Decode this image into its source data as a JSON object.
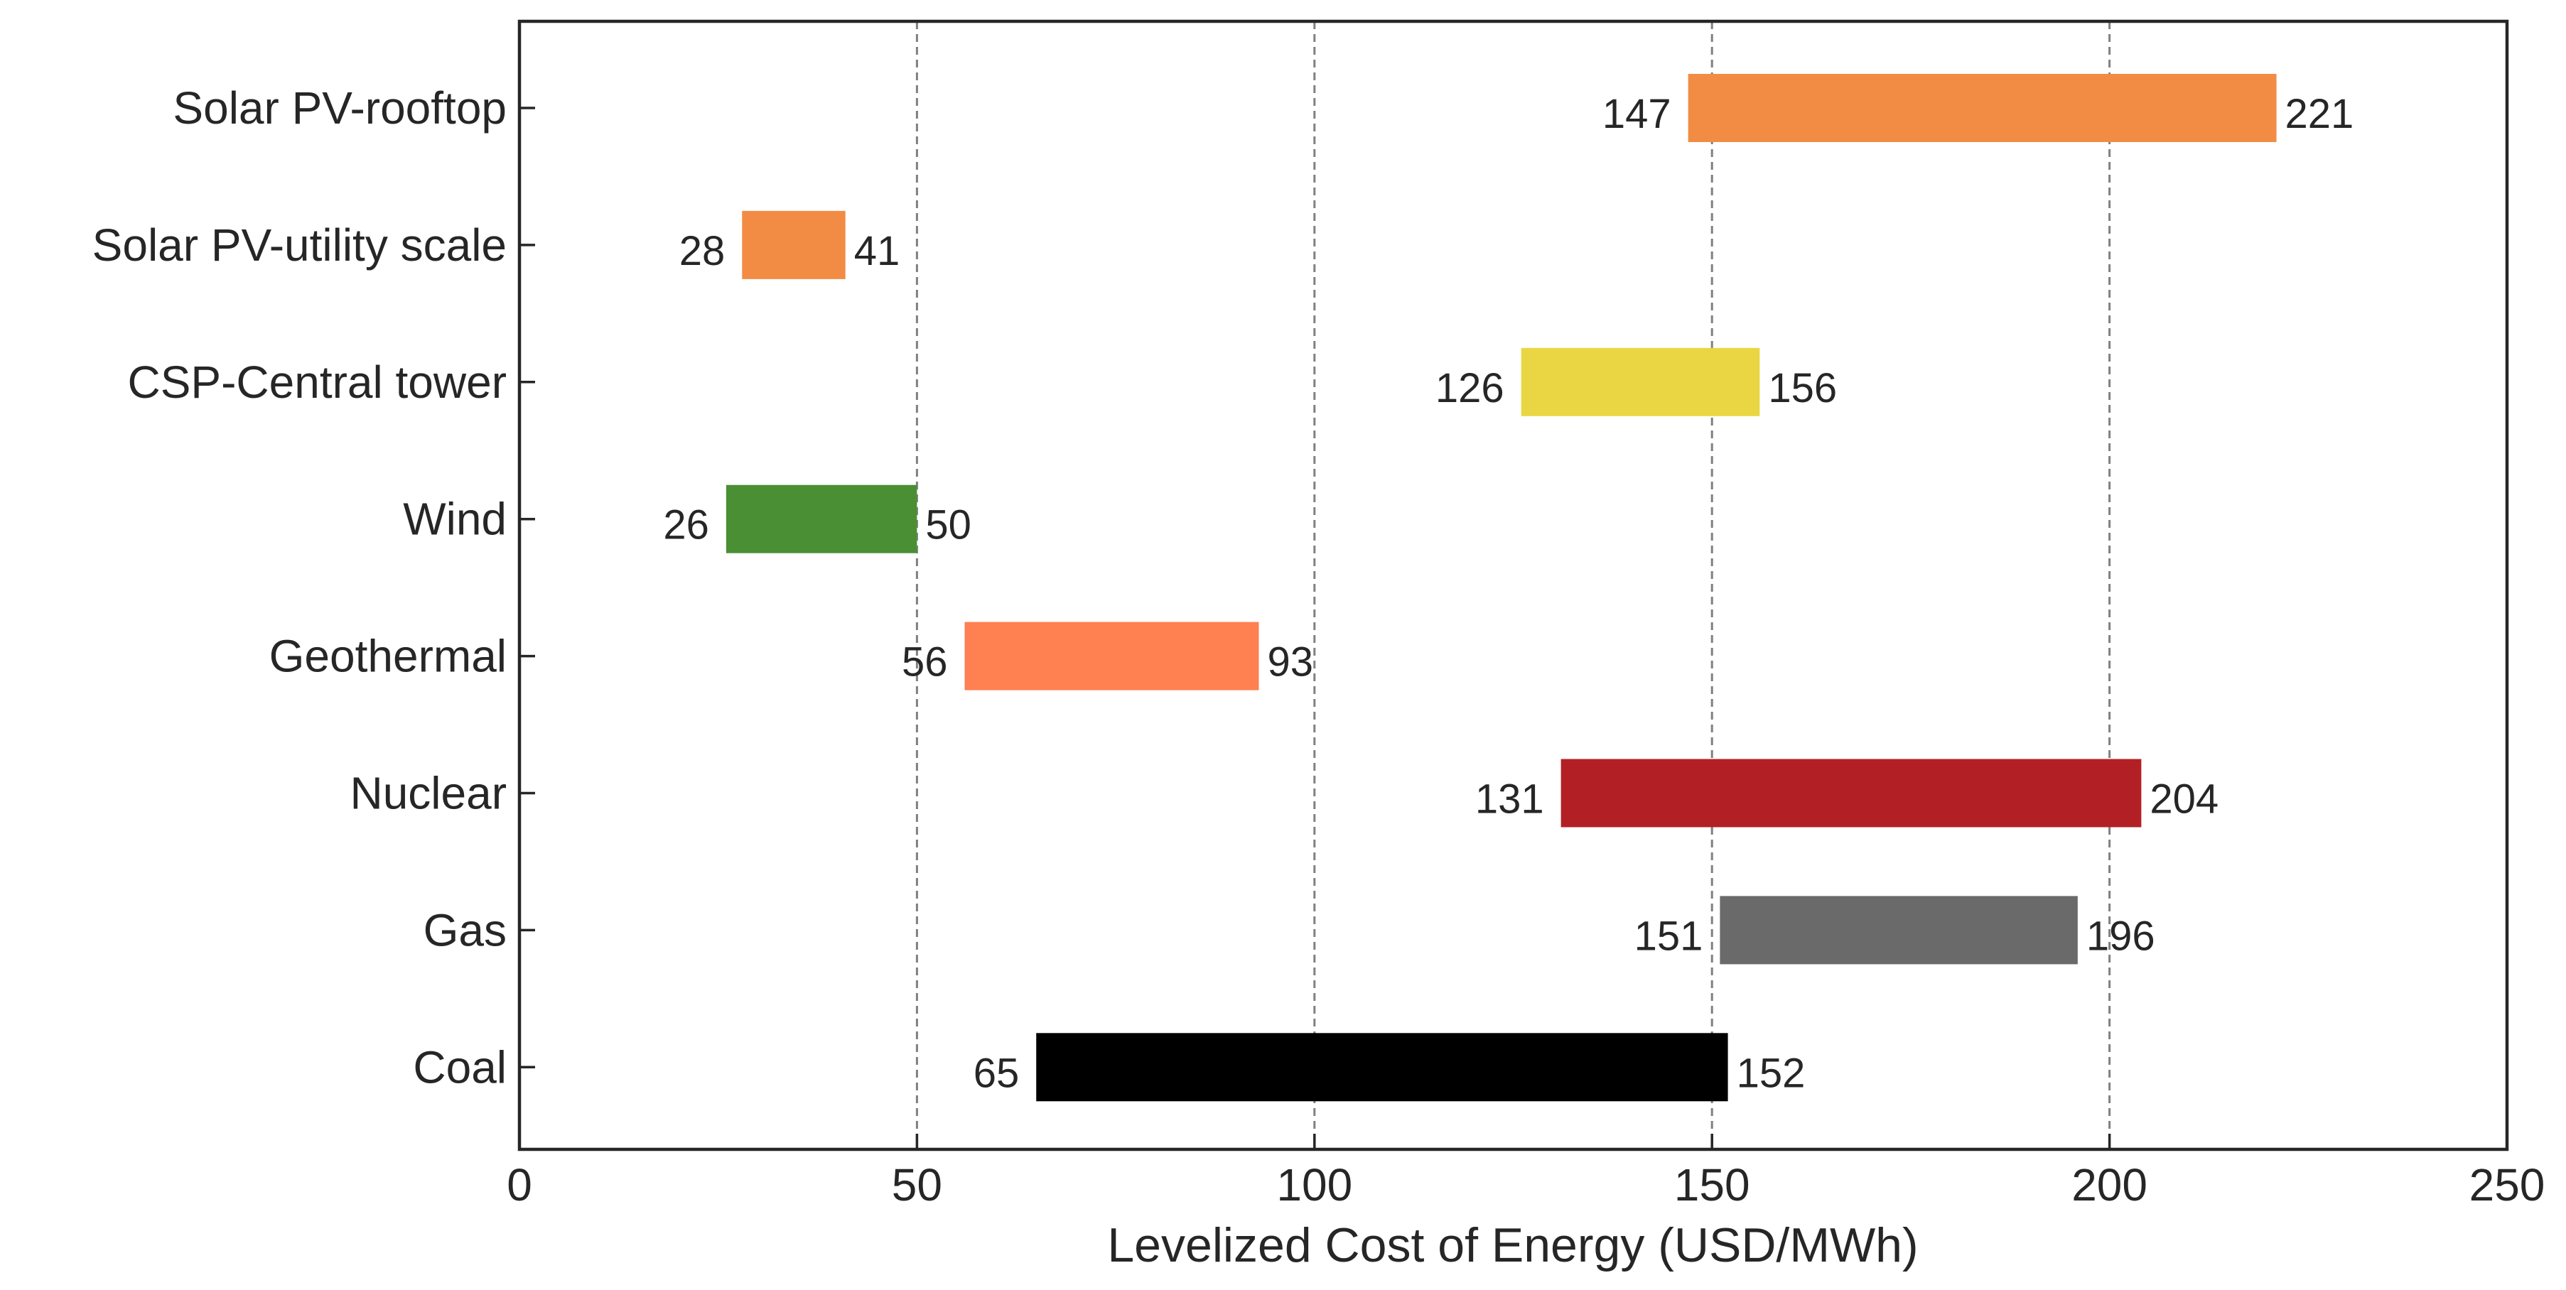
{
  "chart_data": {
    "type": "bar",
    "orientation": "horizontal",
    "subtype": "range",
    "title": "",
    "xlabel": "Levelized Cost of Energy (USD/MWh)",
    "ylabel": "",
    "xlim": [
      0,
      250
    ],
    "xticks": [
      0,
      50,
      100,
      150,
      200,
      250
    ],
    "grid": "x dashed at 50, 100, 150, 200",
    "legend": "none",
    "categories": [
      "Solar PV-rooftop",
      "Solar PV-utility scale",
      "CSP-Central tower",
      "Wind",
      "Geothermal",
      "Nuclear",
      "Gas",
      "Coal"
    ],
    "ranges": [
      {
        "category": "Solar PV-rooftop",
        "low": 147,
        "high": 221,
        "color": "#F28C45"
      },
      {
        "category": "Solar PV-utility scale",
        "low": 28,
        "high": 41,
        "color": "#F28C45"
      },
      {
        "category": "CSP-Central tower",
        "low": 126,
        "high": 156,
        "color": "#EAD642"
      },
      {
        "category": "Wind",
        "low": 26,
        "high": 50,
        "color": "#4A8F34"
      },
      {
        "category": "Geothermal",
        "low": 56,
        "high": 93,
        "color": "#FF8050"
      },
      {
        "category": "Nuclear",
        "low": 131,
        "high": 204,
        "color": "#B22025"
      },
      {
        "category": "Gas",
        "low": 151,
        "high": 196,
        "color": "#6A6A6A"
      },
      {
        "category": "Coal",
        "low": 65,
        "high": 152,
        "color": "#000000"
      }
    ]
  }
}
